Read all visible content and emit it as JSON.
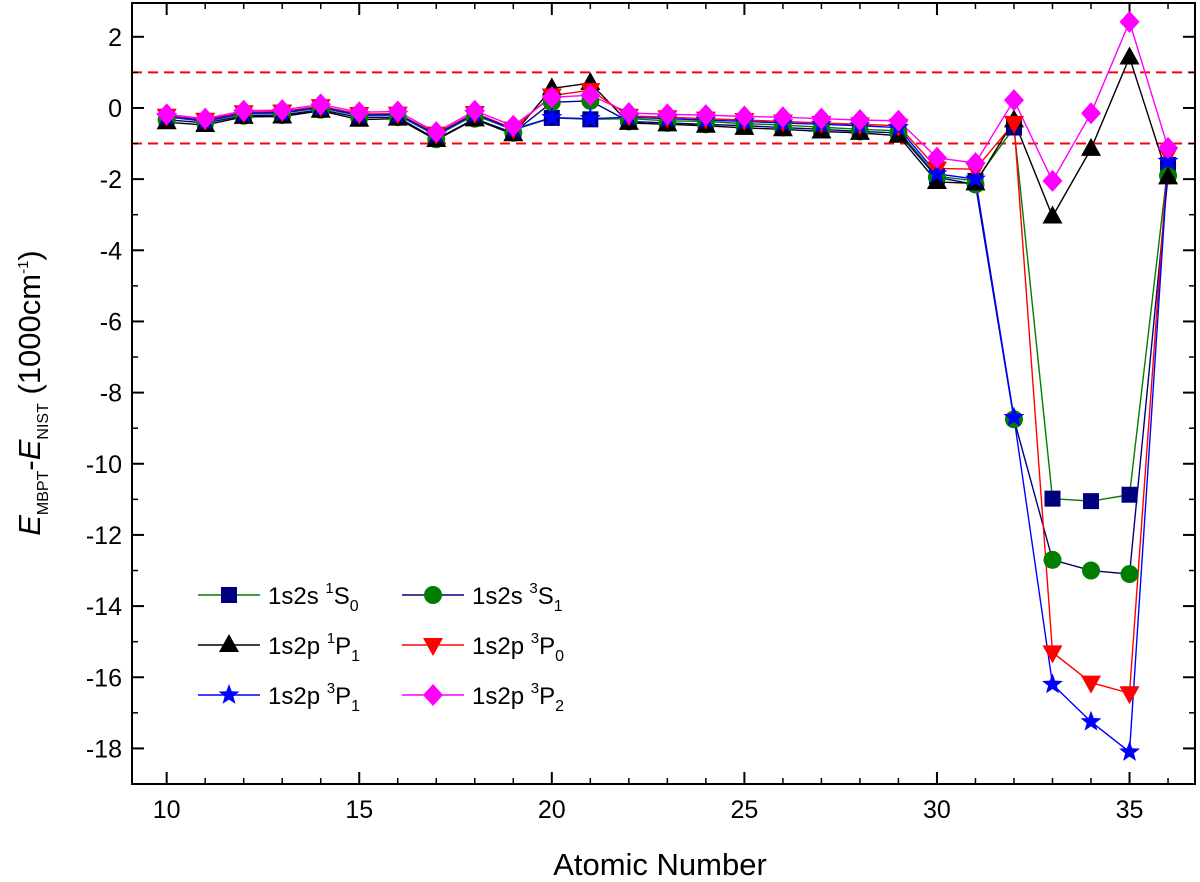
{
  "chart_data": {
    "type": "line",
    "xlabel": "Atomic Number",
    "ylabel": {
      "e1": "E",
      "e1_sub": "MBPT",
      "dash": "-",
      "e2": "E",
      "e2_sub": "NIST",
      "unit_open": " (1000cm",
      "unit_sup": "-1",
      "unit_close": ")"
    },
    "xlim": [
      9.1,
      36.7
    ],
    "ylim": [
      -19.0,
      2.95
    ],
    "xticks": [
      10,
      15,
      20,
      25,
      30,
      35
    ],
    "xtick_labels": [
      "10",
      "15",
      "20",
      "25",
      "30",
      "35"
    ],
    "yticks": [
      2,
      0,
      -2,
      -4,
      -6,
      -8,
      -10,
      -12,
      -14,
      -16,
      -18
    ],
    "ytick_labels": [
      "2",
      "0",
      "-2",
      "-4",
      "-6",
      "-8",
      "-10",
      "-12",
      "-14",
      "-16",
      "-18"
    ],
    "reference_lines": [
      1.0,
      -1.0
    ],
    "reference_line_color": "#ff0000",
    "x": [
      10,
      11,
      12,
      13,
      14,
      15,
      16,
      17,
      18,
      19,
      20,
      21,
      22,
      23,
      24,
      25,
      26,
      27,
      28,
      29,
      30,
      31,
      32,
      33,
      34,
      35,
      36
    ],
    "series": [
      {
        "name": "1s2s 1S0",
        "label_main": "1s2s ",
        "label_sup": "1",
        "label_term": "S",
        "label_sub": "0",
        "marker": "square",
        "marker_color": "#00007f",
        "line_color": "#007f00",
        "values": [
          -0.25,
          -0.38,
          -0.17,
          -0.15,
          0.0,
          -0.22,
          -0.2,
          -0.78,
          -0.2,
          -0.62,
          -0.28,
          -0.32,
          -0.3,
          -0.36,
          -0.38,
          -0.44,
          -0.48,
          -0.54,
          -0.6,
          -0.64,
          -1.92,
          -2.05,
          -0.55,
          -10.98,
          -11.05,
          -10.87,
          -1.6
        ]
      },
      {
        "name": "1s2s 3S1",
        "label_main": "1s2s ",
        "label_sup": "3",
        "label_term": "S",
        "label_sub": "1",
        "marker": "circle",
        "marker_color": "#007f00",
        "line_color": "#00007f",
        "values": [
          -0.33,
          -0.42,
          -0.22,
          -0.2,
          -0.05,
          -0.27,
          -0.26,
          -0.88,
          -0.3,
          -0.7,
          0.16,
          0.2,
          -0.38,
          -0.42,
          -0.46,
          -0.5,
          -0.55,
          -0.6,
          -0.66,
          -0.7,
          -1.95,
          -2.15,
          -8.75,
          -12.7,
          -13.0,
          -13.1,
          -1.9
        ]
      },
      {
        "name": "1s2p 1P1",
        "label_main": "1s2p ",
        "label_sup": "1",
        "label_term": "P",
        "label_sub": "1",
        "marker": "triangle-up",
        "marker_color": "#000000",
        "line_color": "#000000",
        "values": [
          -0.4,
          -0.48,
          -0.25,
          -0.24,
          -0.08,
          -0.33,
          -0.3,
          -0.9,
          -0.32,
          -0.74,
          0.55,
          0.7,
          -0.42,
          -0.46,
          -0.5,
          -0.56,
          -0.6,
          -0.66,
          -0.7,
          -0.78,
          -2.08,
          -2.12,
          -0.35,
          -3.05,
          -1.15,
          1.42,
          -1.95
        ]
      },
      {
        "name": "1s2p 3P0",
        "label_main": "1s2p ",
        "label_sup": "3",
        "label_term": "P",
        "label_sub": "0",
        "marker": "triangle-down",
        "marker_color": "#ff0000",
        "line_color": "#ff0000",
        "values": [
          -0.22,
          -0.33,
          -0.12,
          -0.1,
          0.05,
          -0.17,
          -0.16,
          -0.72,
          -0.14,
          -0.58,
          0.35,
          0.5,
          -0.22,
          -0.26,
          -0.3,
          -0.34,
          -0.38,
          -0.42,
          -0.46,
          -0.5,
          -1.7,
          -1.72,
          -0.42,
          -15.3,
          -16.15,
          -16.45,
          -1.3
        ]
      },
      {
        "name": "1s2p 3P1",
        "label_main": "1s2p ",
        "label_sup": "3",
        "label_term": "P",
        "label_sub": "1",
        "marker": "star",
        "marker_color": "#0000ff",
        "line_color": "#0000ff",
        "values": [
          -0.24,
          -0.36,
          -0.15,
          -0.13,
          0.02,
          -0.2,
          -0.18,
          -0.75,
          -0.17,
          -0.6,
          -0.27,
          -0.3,
          -0.26,
          -0.3,
          -0.34,
          -0.38,
          -0.42,
          -0.46,
          -0.5,
          -0.55,
          -1.85,
          -2.0,
          -8.7,
          -16.2,
          -17.25,
          -18.1,
          -1.5
        ]
      },
      {
        "name": "1s2p 3P2",
        "label_main": "1s2p ",
        "label_sup": "3",
        "label_term": "P",
        "label_sub": "2",
        "marker": "diamond",
        "marker_color": "#ff00ff",
        "line_color": "#ff00ff",
        "values": [
          -0.18,
          -0.3,
          -0.08,
          -0.06,
          0.1,
          -0.12,
          -0.1,
          -0.68,
          -0.08,
          -0.5,
          0.3,
          0.36,
          -0.14,
          -0.18,
          -0.2,
          -0.24,
          -0.26,
          -0.3,
          -0.34,
          -0.36,
          -1.4,
          -1.55,
          0.22,
          -2.05,
          -0.15,
          2.42,
          -1.12
        ]
      }
    ],
    "legend_placement": "bottom-left",
    "grid": false
  }
}
